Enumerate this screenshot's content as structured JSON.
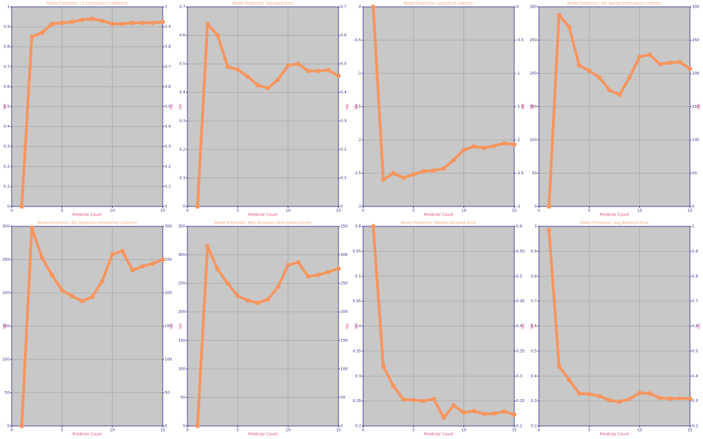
{
  "chart_data": [
    {
      "type": "line",
      "title": "Model Prediction: r2 Correlation Coefficient",
      "x_label": "Predictor Count",
      "y_label": "Val",
      "color": "#f7955f",
      "grid": true,
      "x": [
        1,
        2,
        3,
        4,
        5,
        6,
        7,
        8,
        9,
        10,
        11,
        12,
        13,
        14,
        15
      ],
      "values": [
        0,
        0.85,
        0.87,
        0.915,
        0.92,
        0.925,
        0.935,
        0.94,
        0.93,
        0.915,
        0.915,
        0.92,
        0.92,
        0.92,
        0.925
      ],
      "xlim": [
        0,
        15
      ],
      "xticks": [
        0,
        5,
        10,
        15
      ],
      "ylim": [
        0,
        1
      ],
      "yticks": [
        0,
        0.1,
        0.2,
        0.3,
        0.4,
        0.5,
        0.6,
        0.7,
        0.8,
        0.9,
        1
      ]
    },
    {
      "type": "line",
      "title": "Model Prediction: Standard Error",
      "x_label": "Predictor Count",
      "y_label": "Val",
      "color": "#f7955f",
      "grid": true,
      "x": [
        1,
        2,
        3,
        4,
        5,
        6,
        7,
        8,
        9,
        10,
        11,
        12,
        13,
        14,
        15
      ],
      "values": [
        0,
        0.64,
        0.6,
        0.49,
        0.48,
        0.455,
        0.425,
        0.415,
        0.445,
        0.495,
        0.5,
        0.475,
        0.475,
        0.478,
        0.458
      ],
      "xlim": [
        0,
        15
      ],
      "xticks": [
        0,
        5,
        10,
        15
      ],
      "ylim": [
        0,
        0.7
      ],
      "yticks": [
        0,
        0.1,
        0.2,
        0.3,
        0.4,
        0.5,
        0.6,
        0.7
      ]
    },
    {
      "type": "line",
      "title": "Model Prediction: Log10(1/F-statistic)",
      "x_label": "Predictor Count",
      "y_label": "Val",
      "color": "#f7955f",
      "grid": true,
      "x": [
        1,
        2,
        3,
        4,
        5,
        6,
        7,
        8,
        9,
        10,
        11,
        12,
        13,
        14,
        15
      ],
      "values": [
        0,
        -2.6,
        -2.5,
        -2.57,
        -2.52,
        -2.47,
        -2.46,
        -2.43,
        -2.3,
        -2.15,
        -2.1,
        -2.12,
        -2.09,
        -2.05,
        -2.07
      ],
      "xlim": [
        0,
        15
      ],
      "xticks": [
        0,
        5,
        10,
        15
      ],
      "ylim": [
        -3,
        0
      ],
      "yticks": [
        0,
        -0.5,
        -1,
        -1.5,
        -2,
        -2.5,
        -3
      ]
    },
    {
      "type": "line",
      "title": "Model Prediction: AIC Akaike Information Criterion",
      "x_label": "Predictor Count",
      "y_label": "Val",
      "color": "#f7955f",
      "grid": true,
      "x": [
        1,
        2,
        3,
        4,
        5,
        6,
        7,
        8,
        9,
        10,
        11,
        12,
        13,
        14,
        15
      ],
      "values": [
        0,
        288,
        270,
        212,
        204,
        194,
        175,
        168,
        194,
        225,
        228,
        214,
        216,
        217,
        207
      ],
      "xlim": [
        0,
        15
      ],
      "xticks": [
        0,
        5,
        10,
        15
      ],
      "ylim": [
        0,
        300
      ],
      "yticks": [
        0,
        50,
        100,
        150,
        200,
        250,
        300
      ]
    },
    {
      "type": "line",
      "title": "Model Prediction: BIC Bayesian Information Criterion",
      "x_label": "Predictor Count",
      "y_label": "Val",
      "color": "#f7955f",
      "grid": true,
      "x": [
        1,
        2,
        3,
        4,
        5,
        6,
        7,
        8,
        9,
        10,
        11,
        12,
        13,
        14,
        15
      ],
      "values": [
        0,
        298,
        253,
        227,
        204,
        195,
        188,
        194,
        218,
        258,
        263,
        234,
        240,
        244,
        250
      ],
      "xlim": [
        0,
        15
      ],
      "xticks": [
        0,
        5,
        10,
        15
      ],
      "ylim": [
        0,
        300
      ],
      "yticks": [
        0,
        50,
        100,
        150,
        200,
        250,
        300
      ]
    },
    {
      "type": "line",
      "title": "Model Prediction: MDL Rissanen Description Length",
      "x_label": "Predictor Count",
      "y_label": "Val",
      "color": "#f7955f",
      "grid": true,
      "x": [
        1,
        2,
        3,
        4,
        5,
        6,
        7,
        8,
        9,
        10,
        11,
        12,
        13,
        14,
        15
      ],
      "values": [
        0,
        315,
        275,
        250,
        228,
        220,
        216,
        222,
        244,
        282,
        287,
        262,
        265,
        270,
        276
      ],
      "xlim": [
        0,
        15
      ],
      "xticks": [
        0,
        5,
        10,
        15
      ],
      "ylim": [
        0,
        350
      ],
      "yticks": [
        0,
        50,
        100,
        150,
        200,
        250,
        300,
        350
      ]
    },
    {
      "type": "line",
      "title": "Model Prediction: Median Absolute Error",
      "x_label": "Predictor Count",
      "y_label": "Val",
      "color": "#f7955f",
      "grid": true,
      "x": [
        1,
        2,
        3,
        4,
        5,
        6,
        7,
        8,
        9,
        10,
        11,
        12,
        13,
        14,
        15
      ],
      "values": [
        0.6,
        0.32,
        0.28,
        0.253,
        0.252,
        0.25,
        0.254,
        0.217,
        0.241,
        0.227,
        0.23,
        0.224,
        0.225,
        0.229,
        0.223
      ],
      "xlim": [
        0,
        15
      ],
      "xticks": [
        0,
        5,
        10,
        15
      ],
      "ylim": [
        0.2,
        0.6
      ],
      "yticks": [
        0.2,
        0.25,
        0.3,
        0.35,
        0.4,
        0.45,
        0.5,
        0.55,
        0.6
      ]
    },
    {
      "type": "line",
      "title": "Model Prediction: Avg Absolute Error",
      "x_label": "Predictor Count",
      "y_label": "Val",
      "color": "#f7955f",
      "grid": true,
      "x": [
        1,
        2,
        3,
        4,
        5,
        6,
        7,
        8,
        9,
        10,
        11,
        12,
        13,
        14,
        15
      ],
      "values": [
        0.985,
        0.44,
        0.385,
        0.33,
        0.328,
        0.32,
        0.303,
        0.297,
        0.308,
        0.332,
        0.33,
        0.312,
        0.31,
        0.31,
        0.31
      ],
      "xlim": [
        0,
        15
      ],
      "xticks": [
        0,
        5,
        10,
        15
      ],
      "ylim": [
        0.2,
        1
      ],
      "yticks": [
        0.2,
        0.3,
        0.4,
        0.5,
        0.6,
        0.7,
        0.8,
        0.9,
        1
      ]
    }
  ]
}
